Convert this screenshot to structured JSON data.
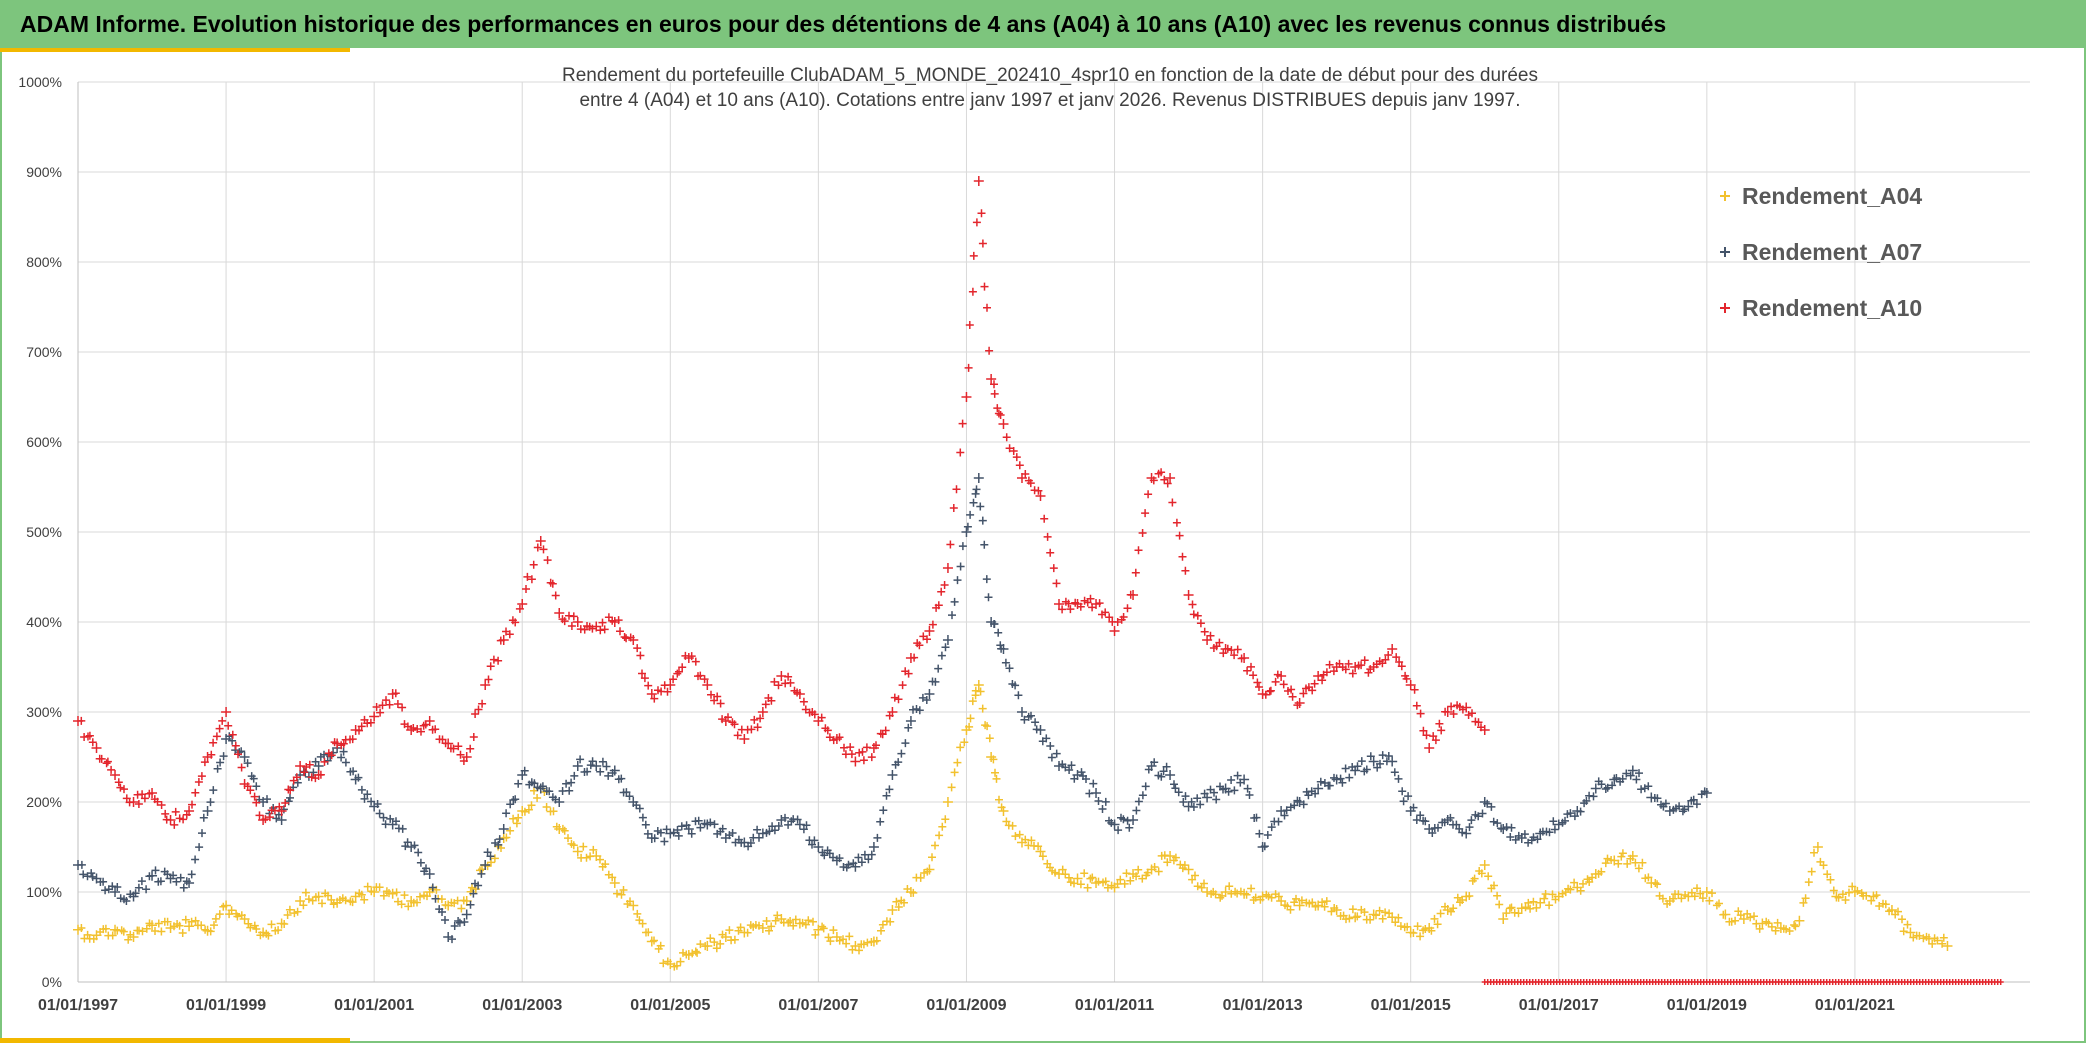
{
  "banner": {
    "title": "ADAM Informe. Evolution historique des performances en euros pour des détentions de 4 ans (A04) à 10 ans (A10) avec les revenus connus distribués"
  },
  "colors": {
    "banner": "#7dc57d",
    "accent": "#f2b800",
    "A04": "#f2c12e",
    "A07": "#44546a",
    "A10": "#e3262d",
    "grid": "#d9d9d9"
  },
  "chart_data": {
    "type": "scatter",
    "title_lines": [
      "Rendement du portefeuille ClubADAM_5_MONDE_202410_4spr10  en fonction de la date de début pour des durées",
      "entre 4 (A04) et 10 ans (A10). Cotations entre janv 1997 et janv 2026. Revenus DISTRIBUES depuis janv 1997."
    ],
    "xlabel": "",
    "ylabel": "",
    "x_range": [
      "1997-01-01",
      "2023-01-01"
    ],
    "ylim": [
      0,
      1000
    ],
    "y_ticks": [
      "0%",
      "100%",
      "200%",
      "300%",
      "400%",
      "500%",
      "600%",
      "700%",
      "800%",
      "900%",
      "1000%"
    ],
    "x_ticks": [
      "01/01/1997",
      "01/01/1999",
      "01/01/2001",
      "01/01/2003",
      "01/01/2005",
      "01/01/2007",
      "01/01/2009",
      "01/01/2011",
      "01/01/2013",
      "01/01/2015",
      "01/01/2017",
      "01/01/2019",
      "01/01/2021"
    ],
    "grid": true,
    "legend_position": "top-right",
    "marker": "+",
    "series": [
      {
        "name": "Rendement_A04",
        "color": "#f2c12e",
        "points": [
          [
            "1997-01",
            58
          ],
          [
            "1997-04",
            52
          ],
          [
            "1997-07",
            58
          ],
          [
            "1997-10",
            50
          ],
          [
            "1998-01",
            63
          ],
          [
            "1998-04",
            60
          ],
          [
            "1998-07",
            62
          ],
          [
            "1998-10",
            57
          ],
          [
            "1999-01",
            85
          ],
          [
            "1999-04",
            70
          ],
          [
            "1999-07",
            55
          ],
          [
            "1999-10",
            65
          ],
          [
            "2000-01",
            90
          ],
          [
            "2000-04",
            95
          ],
          [
            "2000-07",
            88
          ],
          [
            "2000-10",
            95
          ],
          [
            "2001-01",
            100
          ],
          [
            "2001-04",
            98
          ],
          [
            "2001-07",
            90
          ],
          [
            "2001-10",
            100
          ],
          [
            "2002-01",
            85
          ],
          [
            "2002-04",
            90
          ],
          [
            "2002-07",
            130
          ],
          [
            "2002-10",
            160
          ],
          [
            "2003-01",
            190
          ],
          [
            "2003-04",
            215
          ],
          [
            "2003-07",
            170
          ],
          [
            "2003-10",
            145
          ],
          [
            "2004-01",
            140
          ],
          [
            "2004-04",
            110
          ],
          [
            "2004-07",
            85
          ],
          [
            "2004-10",
            45
          ],
          [
            "2005-01",
            20
          ],
          [
            "2005-04",
            30
          ],
          [
            "2005-07",
            40
          ],
          [
            "2005-10",
            50
          ],
          [
            "2006-01",
            55
          ],
          [
            "2006-04",
            60
          ],
          [
            "2006-07",
            70
          ],
          [
            "2006-10",
            65
          ],
          [
            "2007-01",
            58
          ],
          [
            "2007-04",
            50
          ],
          [
            "2007-07",
            40
          ],
          [
            "2007-10",
            45
          ],
          [
            "2008-01",
            80
          ],
          [
            "2008-04",
            100
          ],
          [
            "2008-07",
            125
          ],
          [
            "2008-10",
            200
          ],
          [
            "2009-01",
            280
          ],
          [
            "2009-03",
            330
          ],
          [
            "2009-05",
            250
          ],
          [
            "2009-07",
            190
          ],
          [
            "2009-10",
            155
          ],
          [
            "2010-01",
            145
          ],
          [
            "2010-04",
            120
          ],
          [
            "2010-07",
            115
          ],
          [
            "2010-10",
            110
          ],
          [
            "2011-01",
            105
          ],
          [
            "2011-04",
            120
          ],
          [
            "2011-07",
            125
          ],
          [
            "2011-10",
            140
          ],
          [
            "2012-01",
            125
          ],
          [
            "2012-04",
            100
          ],
          [
            "2012-07",
            100
          ],
          [
            "2012-10",
            98
          ],
          [
            "2013-01",
            95
          ],
          [
            "2013-04",
            90
          ],
          [
            "2013-07",
            85
          ],
          [
            "2013-10",
            85
          ],
          [
            "2014-01",
            80
          ],
          [
            "2014-04",
            72
          ],
          [
            "2014-07",
            75
          ],
          [
            "2014-10",
            72
          ],
          [
            "2015-01",
            55
          ],
          [
            "2015-04",
            60
          ],
          [
            "2015-07",
            80
          ],
          [
            "2015-10",
            95
          ],
          [
            "2016-01",
            130
          ],
          [
            "2016-04",
            70
          ],
          [
            "2016-07",
            82
          ],
          [
            "2016-10",
            88
          ],
          [
            "2017-01",
            95
          ],
          [
            "2017-04",
            105
          ],
          [
            "2017-07",
            120
          ],
          [
            "2017-10",
            135
          ],
          [
            "2018-01",
            140
          ],
          [
            "2018-04",
            110
          ],
          [
            "2018-07",
            90
          ],
          [
            "2018-10",
            95
          ],
          [
            "2019-01",
            100
          ],
          [
            "2019-04",
            75
          ],
          [
            "2019-07",
            70
          ],
          [
            "2019-10",
            65
          ],
          [
            "2020-01",
            60
          ],
          [
            "2020-04",
            68
          ],
          [
            "2020-07",
            150
          ],
          [
            "2020-10",
            95
          ],
          [
            "2021-01",
            100
          ],
          [
            "2021-04",
            95
          ],
          [
            "2021-07",
            80
          ],
          [
            "2021-10",
            55
          ],
          [
            "2022-01",
            48
          ],
          [
            "2022-04",
            40
          ]
        ]
      },
      {
        "name": "Rendement_A07",
        "color": "#44546a",
        "points": [
          [
            "1997-01",
            130
          ],
          [
            "1997-04",
            115
          ],
          [
            "1997-07",
            100
          ],
          [
            "1997-10",
            95
          ],
          [
            "1998-01",
            118
          ],
          [
            "1998-04",
            115
          ],
          [
            "1998-07",
            110
          ],
          [
            "1998-10",
            190
          ],
          [
            "1999-01",
            270
          ],
          [
            "1999-04",
            250
          ],
          [
            "1999-07",
            200
          ],
          [
            "1999-10",
            180
          ],
          [
            "2000-01",
            230
          ],
          [
            "2000-04",
            240
          ],
          [
            "2000-07",
            260
          ],
          [
            "2000-10",
            225
          ],
          [
            "2001-01",
            195
          ],
          [
            "2001-04",
            175
          ],
          [
            "2001-07",
            150
          ],
          [
            "2001-10",
            120
          ],
          [
            "2002-01",
            50
          ],
          [
            "2002-04",
            75
          ],
          [
            "2002-07",
            130
          ],
          [
            "2002-10",
            170
          ],
          [
            "2003-01",
            230
          ],
          [
            "2003-04",
            215
          ],
          [
            "2003-07",
            200
          ],
          [
            "2003-10",
            240
          ],
          [
            "2004-01",
            240
          ],
          [
            "2004-04",
            235
          ],
          [
            "2004-07",
            200
          ],
          [
            "2004-10",
            160
          ],
          [
            "2005-01",
            165
          ],
          [
            "2005-04",
            170
          ],
          [
            "2005-07",
            175
          ],
          [
            "2005-10",
            160
          ],
          [
            "2006-01",
            155
          ],
          [
            "2006-04",
            165
          ],
          [
            "2006-07",
            180
          ],
          [
            "2006-10",
            175
          ],
          [
            "2007-01",
            150
          ],
          [
            "2007-04",
            135
          ],
          [
            "2007-07",
            128
          ],
          [
            "2007-10",
            150
          ],
          [
            "2008-01",
            230
          ],
          [
            "2008-04",
            290
          ],
          [
            "2008-07",
            320
          ],
          [
            "2008-10",
            380
          ],
          [
            "2009-01",
            500
          ],
          [
            "2009-03",
            560
          ],
          [
            "2009-05",
            400
          ],
          [
            "2009-07",
            370
          ],
          [
            "2009-10",
            300
          ],
          [
            "2010-01",
            280
          ],
          [
            "2010-04",
            240
          ],
          [
            "2010-07",
            230
          ],
          [
            "2010-10",
            210
          ],
          [
            "2011-01",
            175
          ],
          [
            "2011-04",
            180
          ],
          [
            "2011-07",
            240
          ],
          [
            "2011-10",
            230
          ],
          [
            "2012-01",
            195
          ],
          [
            "2012-04",
            205
          ],
          [
            "2012-07",
            215
          ],
          [
            "2012-10",
            225
          ],
          [
            "2013-01",
            150
          ],
          [
            "2013-04",
            190
          ],
          [
            "2013-07",
            200
          ],
          [
            "2013-10",
            215
          ],
          [
            "2014-01",
            225
          ],
          [
            "2014-04",
            235
          ],
          [
            "2014-07",
            245
          ],
          [
            "2014-10",
            245
          ],
          [
            "2015-01",
            190
          ],
          [
            "2015-04",
            170
          ],
          [
            "2015-07",
            180
          ],
          [
            "2015-10",
            165
          ],
          [
            "2016-01",
            200
          ],
          [
            "2016-04",
            170
          ],
          [
            "2016-07",
            160
          ],
          [
            "2016-10",
            165
          ],
          [
            "2017-01",
            175
          ],
          [
            "2017-04",
            190
          ],
          [
            "2017-07",
            215
          ],
          [
            "2017-10",
            225
          ],
          [
            "2018-01",
            235
          ],
          [
            "2018-04",
            205
          ],
          [
            "2018-07",
            190
          ],
          [
            "2018-10",
            195
          ],
          [
            "2019-01",
            210
          ]
        ]
      },
      {
        "name": "Rendement_A10",
        "color": "#e3262d",
        "points": [
          [
            "1997-01",
            290
          ],
          [
            "1997-04",
            260
          ],
          [
            "1997-07",
            230
          ],
          [
            "1997-10",
            200
          ],
          [
            "1998-01",
            210
          ],
          [
            "1998-04",
            180
          ],
          [
            "1998-07",
            190
          ],
          [
            "1998-10",
            250
          ],
          [
            "1999-01",
            300
          ],
          [
            "1999-04",
            220
          ],
          [
            "1999-07",
            180
          ],
          [
            "1999-10",
            190
          ],
          [
            "2000-01",
            240
          ],
          [
            "2000-04",
            230
          ],
          [
            "2000-07",
            265
          ],
          [
            "2000-10",
            280
          ],
          [
            "2001-01",
            295
          ],
          [
            "2001-04",
            320
          ],
          [
            "2001-07",
            280
          ],
          [
            "2001-10",
            290
          ],
          [
            "2002-01",
            265
          ],
          [
            "2002-04",
            250
          ],
          [
            "2002-07",
            330
          ],
          [
            "2002-10",
            380
          ],
          [
            "2003-01",
            420
          ],
          [
            "2003-04",
            490
          ],
          [
            "2003-07",
            410
          ],
          [
            "2003-10",
            400
          ],
          [
            "2004-01",
            395
          ],
          [
            "2004-04",
            400
          ],
          [
            "2004-07",
            380
          ],
          [
            "2004-10",
            320
          ],
          [
            "2005-01",
            330
          ],
          [
            "2005-04",
            360
          ],
          [
            "2005-07",
            330
          ],
          [
            "2005-10",
            290
          ],
          [
            "2006-01",
            270
          ],
          [
            "2006-04",
            300
          ],
          [
            "2006-07",
            340
          ],
          [
            "2006-10",
            320
          ],
          [
            "2007-01",
            290
          ],
          [
            "2007-04",
            270
          ],
          [
            "2007-07",
            245
          ],
          [
            "2007-10",
            260
          ],
          [
            "2008-01",
            300
          ],
          [
            "2008-04",
            360
          ],
          [
            "2008-07",
            390
          ],
          [
            "2008-10",
            460
          ],
          [
            "2009-01",
            650
          ],
          [
            "2009-03",
            890
          ],
          [
            "2009-05",
            670
          ],
          [
            "2009-07",
            620
          ],
          [
            "2009-10",
            560
          ],
          [
            "2010-01",
            540
          ],
          [
            "2010-04",
            420
          ],
          [
            "2010-07",
            420
          ],
          [
            "2010-10",
            420
          ],
          [
            "2011-01",
            390
          ],
          [
            "2011-04",
            430
          ],
          [
            "2011-07",
            560
          ],
          [
            "2011-10",
            560
          ],
          [
            "2012-01",
            430
          ],
          [
            "2012-04",
            380
          ],
          [
            "2012-07",
            370
          ],
          [
            "2012-10",
            360
          ],
          [
            "2013-01",
            320
          ],
          [
            "2013-04",
            340
          ],
          [
            "2013-07",
            310
          ],
          [
            "2013-10",
            340
          ],
          [
            "2014-01",
            350
          ],
          [
            "2014-04",
            350
          ],
          [
            "2014-07",
            350
          ],
          [
            "2014-10",
            370
          ],
          [
            "2015-01",
            330
          ],
          [
            "2015-04",
            260
          ],
          [
            "2015-07",
            300
          ],
          [
            "2015-10",
            305
          ],
          [
            "2016-01",
            280
          ]
        ]
      }
    ]
  }
}
